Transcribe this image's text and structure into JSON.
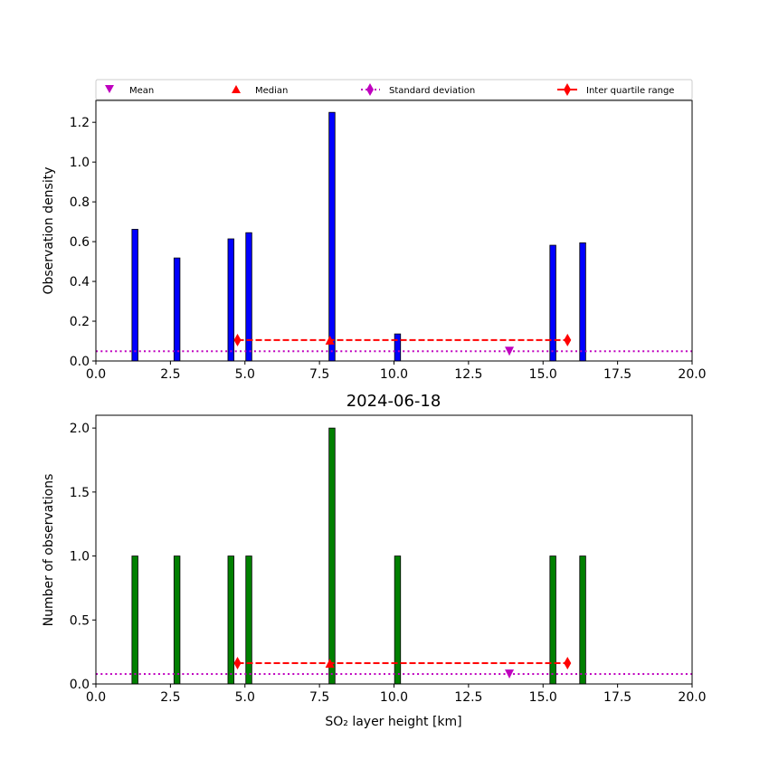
{
  "chart_data": [
    {
      "type": "bar",
      "title": "",
      "xlabel": "",
      "ylabel": "Observation density",
      "xlim": [
        0,
        20
      ],
      "ylim": [
        0,
        1.31
      ],
      "xticks": [
        "0.0",
        "2.5",
        "5.0",
        "7.5",
        "10.0",
        "12.5",
        "15.0",
        "17.5",
        "20.0"
      ],
      "yticks": [
        "0.0",
        "0.2",
        "0.4",
        "0.6",
        "0.8",
        "1.0",
        "1.2"
      ],
      "bar_color": "#0000ff",
      "x": [
        1.31,
        2.72,
        4.53,
        5.13,
        7.92,
        10.12,
        15.33,
        16.33
      ],
      "bar_width": 0.2,
      "values": [
        0.662,
        0.518,
        0.614,
        0.645,
        1.25,
        0.136,
        0.582,
        0.594
      ],
      "stats": {
        "mean": [
          13.87,
          0.049
        ],
        "median": [
          7.85,
          0.105
        ],
        "std_y": 0.049,
        "iqr": [
          4.75,
          15.82,
          0.105
        ]
      }
    },
    {
      "type": "bar",
      "title": "2024-06-18",
      "xlabel": "SO₂ layer height [km]",
      "ylabel": "Number of observations",
      "xlim": [
        0,
        20
      ],
      "ylim": [
        0,
        2.1
      ],
      "xticks": [
        "0.0",
        "2.5",
        "5.0",
        "7.5",
        "10.0",
        "12.5",
        "15.0",
        "17.5",
        "20.0"
      ],
      "yticks": [
        "0.0",
        "0.5",
        "1.0",
        "1.5",
        "2.0"
      ],
      "bar_color": "#008000",
      "x": [
        1.31,
        2.72,
        4.53,
        5.13,
        7.92,
        10.12,
        15.33,
        16.33
      ],
      "bar_width": 0.2,
      "values": [
        1,
        1,
        1,
        1,
        2,
        1,
        1,
        1
      ],
      "stats": {
        "mean": [
          13.87,
          0.078
        ],
        "median": [
          7.85,
          0.163
        ],
        "std_y": 0.078,
        "iqr": [
          4.75,
          15.82,
          0.163
        ]
      }
    }
  ],
  "legend": {
    "placement": "top",
    "entries": [
      {
        "label": "Mean",
        "color": "#bf00bf"
      },
      {
        "label": "Median",
        "color": "#ff0000"
      },
      {
        "label": "Standard deviation",
        "color": "#bf00bf"
      },
      {
        "label": "Inter quartile range",
        "color": "#ff0000"
      }
    ]
  }
}
